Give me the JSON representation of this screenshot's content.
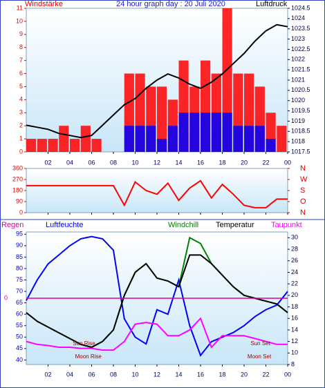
{
  "chart_data": [
    {
      "type": "bar",
      "title": "24 hour graph day : 20 Juli 2020",
      "y_label": "Windstärke",
      "y2_label": "Luftdruck",
      "y_color": "#e00000",
      "y2_color": "#000040",
      "x": [
        0,
        1,
        2,
        3,
        4,
        5,
        6,
        7,
        8,
        9,
        10,
        11,
        12,
        13,
        14,
        15,
        16,
        17,
        18,
        19,
        20,
        21,
        22,
        23,
        24
      ],
      "xlim": [
        0,
        24
      ],
      "xticks": [
        {
          "value": 2,
          "label": "02"
        },
        {
          "value": 4,
          "label": "04"
        },
        {
          "value": 6,
          "label": "06"
        },
        {
          "value": 8,
          "label": "08"
        },
        10,
        12,
        14,
        16,
        18,
        20,
        22,
        {
          "value": 24,
          "label": "00"
        }
      ],
      "ylim": [
        0,
        11
      ],
      "yticks": [
        0,
        1,
        2,
        3,
        4,
        5,
        6,
        7,
        8,
        9,
        10,
        11
      ],
      "y2lim": [
        1017.5,
        1024.5
      ],
      "y2ticks": [
        1017.5,
        1018,
        1018.5,
        1019,
        1019.5,
        1020,
        1020.5,
        1021,
        1021.5,
        1022,
        1022.5,
        1023,
        1023.5,
        1024,
        1024.5
      ],
      "series": [
        {
          "color": "#ff0000",
          "values": [
            1,
            1,
            1,
            2,
            1,
            2,
            1,
            0,
            0,
            6,
            6,
            5,
            5,
            4,
            7,
            5,
            7,
            6,
            11,
            6,
            6,
            5,
            3,
            2,
            0
          ]
        },
        {
          "color": "#0000ff",
          "values": [
            0,
            0,
            0,
            0,
            0,
            0,
            0,
            0,
            0,
            2,
            2,
            2,
            1,
            2,
            3,
            3,
            3,
            3,
            3,
            2,
            2,
            2,
            1,
            0,
            0
          ]
        },
        {
          "type": "line",
          "axis": "y2",
          "color": "#000000",
          "values": [
            1018.8,
            1018.7,
            1018.6,
            1018.4,
            1018.3,
            1018.2,
            1018.3,
            1018.8,
            1019.3,
            1019.8,
            1020.1,
            1020.6,
            1021,
            1021.3,
            1021.1,
            1020.8,
            1020.6,
            1020.9,
            1021.3,
            1021.8,
            1022.3,
            1022.9,
            1023.4,
            1023.7,
            1023.6
          ]
        }
      ]
    },
    {
      "type": "line",
      "y_color": "#e00000",
      "y2_color": "#e00000",
      "x": [
        0,
        1,
        2,
        3,
        4,
        5,
        6,
        7,
        8,
        9,
        10,
        11,
        12,
        13,
        14,
        15,
        16,
        17,
        18,
        19,
        20,
        21,
        22,
        23,
        24
      ],
      "xlim": [
        0,
        24
      ],
      "xticks": [
        2,
        4,
        6,
        8,
        10,
        12,
        14,
        16,
        18,
        20,
        22,
        24
      ],
      "ylim": [
        0,
        360
      ],
      "yticks": [
        0,
        90,
        180,
        270,
        360
      ],
      "y2lim": [
        0,
        360
      ],
      "y2ticks": [
        {
          "value": 360,
          "label": "N"
        },
        {
          "value": 270,
          "label": "W"
        },
        {
          "value": 180,
          "label": "S"
        },
        {
          "value": 90,
          "label": "O"
        },
        {
          "value": 0,
          "label": "N"
        }
      ],
      "series": [
        {
          "color": "#ff0000",
          "values": [
            220,
            220,
            220,
            220,
            220,
            220,
            220,
            220,
            220,
            60,
            250,
            180,
            150,
            240,
            100,
            200,
            260,
            120,
            230,
            150,
            60,
            40,
            40,
            110,
            110
          ]
        }
      ]
    },
    {
      "type": "line",
      "y_color": "#0000c0",
      "y2_color": "#000040",
      "y3_color": "#e000a0",
      "x": [
        0,
        1,
        2,
        3,
        4,
        5,
        6,
        7,
        8,
        9,
        10,
        11,
        12,
        13,
        14,
        15,
        16,
        17,
        18,
        19,
        20,
        21,
        22,
        23,
        24
      ],
      "xlim": [
        0,
        24
      ],
      "xticks": [
        {
          "value": 2,
          "label": "02"
        },
        {
          "value": 4,
          "label": "04"
        },
        {
          "value": 6,
          "label": "06"
        },
        {
          "value": 8,
          "label": "08"
        },
        10,
        12,
        14,
        16,
        18,
        20,
        22,
        {
          "value": 24,
          "label": "00"
        }
      ],
      "ylim": [
        38,
        96
      ],
      "yticks": [
        40,
        45,
        50,
        55,
        60,
        65,
        70,
        75,
        80,
        85,
        90,
        95
      ],
      "y2lim": [
        8,
        31
      ],
      "y2ticks": [
        8,
        10,
        12,
        14,
        16,
        18,
        20,
        22,
        24,
        26,
        28,
        30
      ],
      "y3lim": [
        -1,
        1
      ],
      "y3ticks": [
        0
      ],
      "series": [
        {
          "name": "Luftfeuchte",
          "color": "#0000ff",
          "values": [
            66,
            75,
            82,
            86,
            90,
            93,
            94,
            93,
            88,
            58,
            50,
            47,
            62,
            60,
            75,
            55,
            42,
            48,
            50,
            52,
            55,
            59,
            62,
            64,
            70
          ]
        },
        {
          "name": "Windchill",
          "color": "#008000",
          "axis": "y2",
          "values": [
            17,
            15.5,
            14.5,
            13.5,
            12.5,
            11.5,
            11,
            12,
            14,
            20,
            24,
            25.5,
            23,
            22.5,
            21.5,
            30,
            29,
            25.5,
            23.5,
            21.5,
            20,
            19.5,
            19,
            18.5,
            17
          ]
        },
        {
          "name": "Temperatur",
          "color": "#000000",
          "axis": "y2",
          "values": [
            17,
            15.5,
            14.5,
            13.5,
            12.5,
            11.5,
            11,
            12,
            14,
            20,
            24,
            25.5,
            23,
            22.5,
            21.5,
            27,
            27,
            25.5,
            23.5,
            21.5,
            20,
            19.5,
            19,
            18.5,
            17
          ]
        },
        {
          "name": "Taupunkt",
          "color": "#ff00ff",
          "axis": "y2",
          "values": [
            12,
            11.5,
            11.3,
            11,
            11,
            10.8,
            10.8,
            10.5,
            10.5,
            12,
            15,
            15.3,
            15,
            13,
            13,
            14,
            16,
            11,
            13,
            13,
            13,
            12.5,
            12,
            11.5,
            11.5
          ]
        },
        {
          "name": "Regen",
          "color": "#e000a0",
          "axis": "y3",
          "values": [
            0,
            0,
            0,
            0,
            0,
            0,
            0,
            0,
            0,
            0,
            0,
            0,
            0,
            0,
            0,
            0,
            0,
            0,
            0,
            0,
            0,
            0,
            0,
            0,
            0
          ]
        }
      ],
      "annotations": [
        {
          "text": "Sun Rise",
          "x": 5.3
        },
        {
          "text": "Moon Rise",
          "x": 5.7
        },
        {
          "text": "Sun Set",
          "x": 21.5
        },
        {
          "text": "Moon Set",
          "x": 21.4
        }
      ]
    }
  ]
}
